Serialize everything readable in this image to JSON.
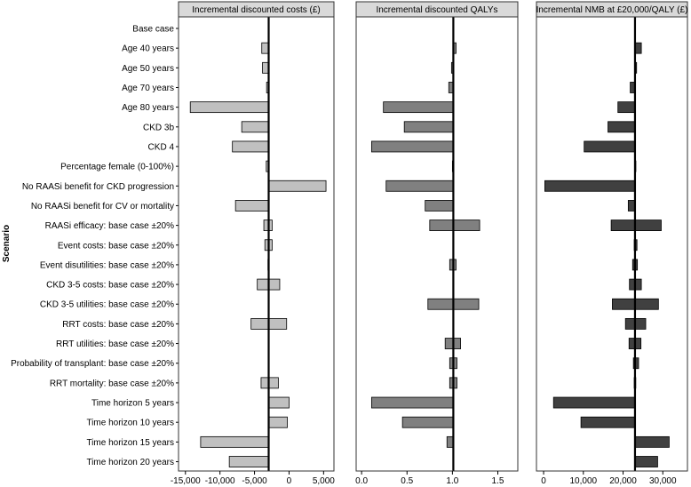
{
  "chart_data": {
    "type": "bar",
    "orientation": "horizontal",
    "y_axis_title": "Scenario",
    "scenarios": [
      "Base case",
      "Age 40 years",
      "Age 50 years",
      "Age 70 years",
      "Age 80 years",
      "CKD 3b",
      "CKD 4",
      "Percentage female (0-100%)",
      "No RAASi benefit for CKD progression",
      "No RAASi benefit for CV or mortality",
      "RAASi efficacy: base case ±20%",
      "Event costs: base case ±20%",
      "Event disutilities: base case ±20%",
      "CKD 3-5 costs: base case ±20%",
      "CKD 3-5 utilities: base case ±20%",
      "RRT costs: base case ±20%",
      "RRT utilities: base case ±20%",
      "Probability of transplant: base case ±20%",
      "RRT mortality: base case ±20%",
      "Time horizon 5 years",
      "Time horizon 10 years",
      "Time horizon 15 years",
      "Time horizon 20 years"
    ],
    "panels": [
      {
        "title": "Incremental discounted costs (£)",
        "color": "#c0c0c0",
        "xlim": [
          -16000,
          6500
        ],
        "ticks": [
          -15000,
          -10000,
          -5000,
          0,
          5000
        ],
        "tick_labels": [
          "-15,000",
          "-10,000",
          "-5,000",
          "0",
          "5,000"
        ],
        "base_value": -2950,
        "bars": [
          [
            -2950,
            -2950
          ],
          [
            -3950,
            -2950
          ],
          [
            -3850,
            -2950
          ],
          [
            -3250,
            -2950
          ],
          [
            -14300,
            -2950
          ],
          [
            -6850,
            -2950
          ],
          [
            -8200,
            -2950
          ],
          [
            -3300,
            -2950
          ],
          [
            5350,
            -2950
          ],
          [
            -7750,
            -2950
          ],
          [
            -3650,
            -2450
          ],
          [
            -3500,
            -2450
          ],
          [
            -3050,
            -2950
          ],
          [
            -4600,
            -1350
          ],
          [
            -2950,
            -2950
          ],
          [
            -5500,
            -350
          ],
          [
            -2950,
            -2950
          ],
          [
            -2950,
            -2950
          ],
          [
            -4050,
            -1550
          ],
          [
            -2950,
            0
          ],
          [
            -2950,
            -250
          ],
          [
            -12800,
            -2950
          ],
          [
            -8650,
            -2950
          ]
        ]
      },
      {
        "title": "Incremental discounted QALYs",
        "color": "#808080",
        "xlim": [
          -0.06,
          1.72
        ],
        "ticks": [
          0.0,
          0.5,
          1.0,
          1.5
        ],
        "tick_labels": [
          "0.0",
          "0.5",
          "1.0",
          "1.5"
        ],
        "base_value": 1.01,
        "bars": [
          [
            1.01,
            1.01
          ],
          [
            1.01,
            1.04
          ],
          [
            0.99,
            1.01
          ],
          [
            0.96,
            1.01
          ],
          [
            0.24,
            1.01
          ],
          [
            0.47,
            1.01
          ],
          [
            0.11,
            1.01
          ],
          [
            1.0,
            1.01
          ],
          [
            0.27,
            1.01
          ],
          [
            0.7,
            1.01
          ],
          [
            0.75,
            1.3
          ],
          [
            1.01,
            1.01
          ],
          [
            0.97,
            1.04
          ],
          [
            1.01,
            1.01
          ],
          [
            0.73,
            1.29
          ],
          [
            1.01,
            1.01
          ],
          [
            0.92,
            1.09
          ],
          [
            0.97,
            1.05
          ],
          [
            0.97,
            1.05
          ],
          [
            0.11,
            1.01
          ],
          [
            0.45,
            1.01
          ],
          [
            0.94,
            1.01
          ],
          [
            1.01,
            1.01
          ]
        ]
      },
      {
        "title": "Incremental NMB at £20,000/QALY (£)",
        "color": "#404040",
        "xlim": [
          -1800,
          36200
        ],
        "ticks": [
          0,
          10000,
          20000,
          30000
        ],
        "tick_labels": [
          "0",
          "10,000",
          "20,000",
          "30,000"
        ],
        "base_value": 23000,
        "bars": [
          [
            23000,
            23000
          ],
          [
            23000,
            24600
          ],
          [
            23000,
            23400
          ],
          [
            21800,
            23000
          ],
          [
            18700,
            23000
          ],
          [
            16200,
            23000
          ],
          [
            10200,
            23000
          ],
          [
            23000,
            23200
          ],
          [
            300,
            23000
          ],
          [
            21300,
            23000
          ],
          [
            17000,
            29600
          ],
          [
            22800,
            23500
          ],
          [
            22400,
            23600
          ],
          [
            21600,
            24600
          ],
          [
            17300,
            28900
          ],
          [
            20600,
            25700
          ],
          [
            21500,
            24500
          ],
          [
            22600,
            23900
          ],
          [
            22800,
            23200
          ],
          [
            2500,
            23000
          ],
          [
            9400,
            23000
          ],
          [
            23000,
            31600
          ],
          [
            23000,
            28700
          ]
        ]
      }
    ]
  }
}
